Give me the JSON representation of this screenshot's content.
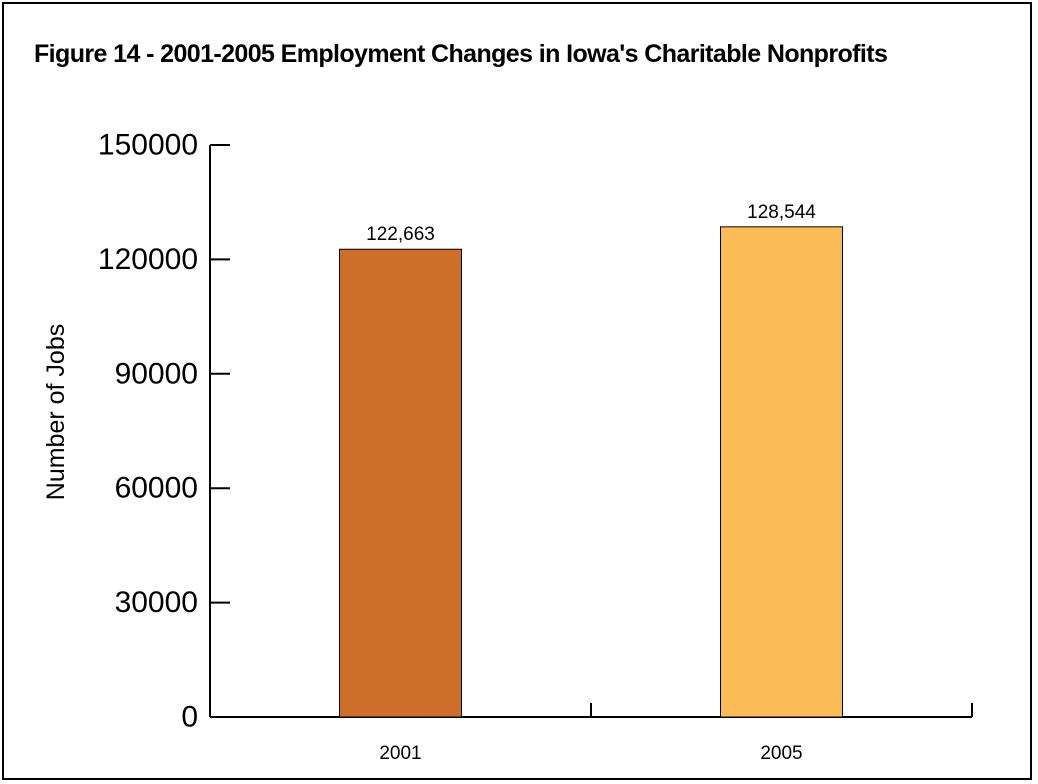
{
  "chart_data": {
    "type": "bar",
    "title": "Figure 14 - 2001-2005 Employment Changes in Iowa's Charitable Nonprofits",
    "xlabel": "",
    "ylabel": "Number of Jobs",
    "categories": [
      "2001",
      "2005"
    ],
    "values": [
      122663,
      128544
    ],
    "data_labels": [
      "122,663",
      "128,544"
    ],
    "colors": [
      "#cd6f2a",
      "#fbbc58"
    ],
    "ylim": [
      0,
      150000
    ],
    "yticks": [
      0,
      30000,
      60000,
      90000,
      120000,
      150000
    ],
    "ytick_labels": [
      "0",
      "30000",
      "60000",
      "90000",
      "120000",
      "150000"
    ],
    "grid": false,
    "legend": "none"
  }
}
